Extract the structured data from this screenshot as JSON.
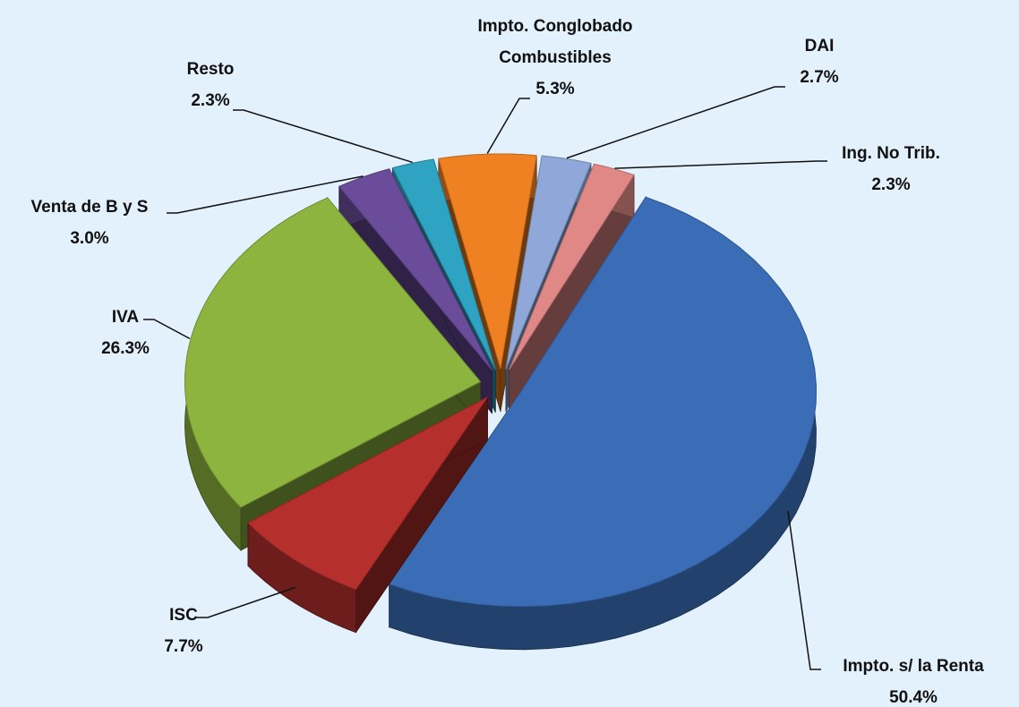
{
  "chart_data": {
    "type": "pie3d",
    "categories": [
      "Impto. s/ la Renta",
      "ISC",
      "IVA",
      "Venta de B y S",
      "Resto",
      "Impto. Conglobado\nCombustibles",
      "DAI",
      "Ing. No Trib."
    ],
    "values": [
      50.4,
      7.7,
      26.3,
      3.0,
      2.3,
      5.3,
      2.7,
      2.3
    ],
    "value_labels": [
      "50.4%",
      "7.7%",
      "26.3%",
      "3.0%",
      "2.3%",
      "5.3%",
      "2.7%",
      "2.3%"
    ],
    "colors": [
      "#3a6db5",
      "#b5302d",
      "#8db43e",
      "#6b4c9b",
      "#2ea3c2",
      "#f08122",
      "#8fa8d9",
      "#e08886"
    ]
  }
}
